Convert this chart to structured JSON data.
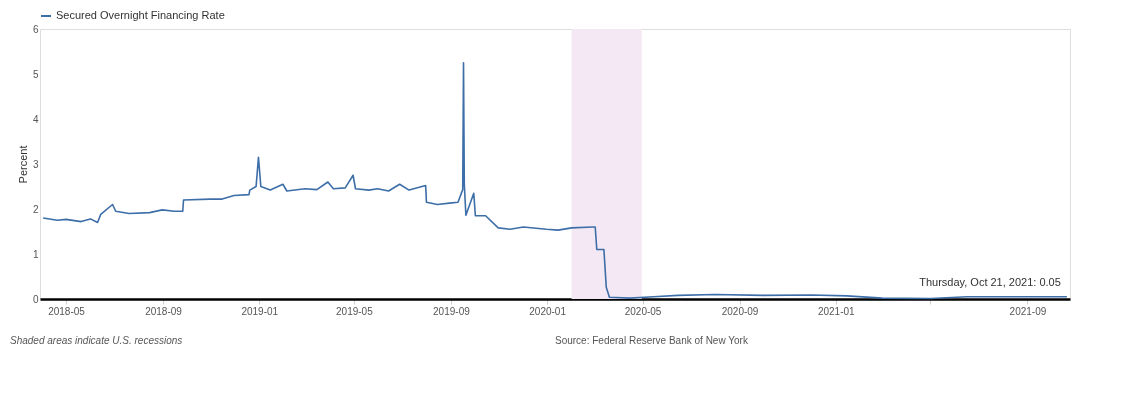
{
  "chart_data": {
    "type": "line",
    "ylabel": "Percent",
    "legend": "top left",
    "grid": false,
    "xlim": [
      "2018-03-29",
      "2021-10-25"
    ],
    "ylim": [
      0,
      6
    ],
    "yticks": [
      0,
      1,
      2,
      3,
      4,
      5,
      6
    ],
    "xticks": [
      "2018-05",
      "2018-09",
      "2019-01",
      "2019-05",
      "2019-09",
      "2020-01",
      "2020-05",
      "2020-09",
      "2021-01",
      {
        "value": "2021-05",
        "label": null
      },
      "2021-09"
    ],
    "bands": [
      {
        "axis": "x",
        "from": "2020-02-01",
        "to": "2020-04-30",
        "color": "#f3e8f3"
      }
    ],
    "annotations": [
      "Shaded areas indicate U.S. recessions",
      "Source: Federal Reserve Bank of New York",
      {
        "text": "Thursday, Oct 21, 2021: 0.05",
        "x": "2021-10-21",
        "y": 0.05
      }
    ],
    "series": [
      {
        "name": "Secured Overnight Financing Rate",
        "color": "#3d6ea8",
        "x": [
          "2018-04-02",
          "2018-04-20",
          "2018-05-01",
          "2018-05-20",
          "2018-06-01",
          "2018-06-10",
          "2018-06-14",
          "2018-06-29",
          "2018-07-03",
          "2018-07-20",
          "2018-08-15",
          "2018-08-31",
          "2018-09-15",
          "2018-09-26",
          "2018-09-27",
          "2018-10-31",
          "2018-11-15",
          "2018-11-30",
          "2018-12-19",
          "2018-12-20",
          "2018-12-28",
          "2018-12-31",
          "2019-01-03",
          "2019-01-15",
          "2019-01-31",
          "2019-02-05",
          "2019-02-28",
          "2019-03-15",
          "2019-03-29",
          "2019-04-05",
          "2019-04-20",
          "2019-04-30",
          "2019-05-03",
          "2019-05-20",
          "2019-05-31",
          "2019-06-14",
          "2019-06-28",
          "2019-07-10",
          "2019-07-31",
          "2019-08-01",
          "2019-08-15",
          "2019-08-30",
          "2019-09-10",
          "2019-09-16",
          "2019-09-17",
          "2019-09-18",
          "2019-09-20",
          "2019-09-30",
          "2019-10-02",
          "2019-10-15",
          "2019-10-31",
          "2019-11-15",
          "2019-12-02",
          "2019-12-31",
          "2020-01-15",
          "2020-02-01",
          "2020-02-28",
          "2020-03-02",
          "2020-03-04",
          "2020-03-13",
          "2020-03-16",
          "2020-03-20",
          "2020-04-15",
          "2020-05-15",
          "2020-06-15",
          "2020-08-01",
          "2020-10-01",
          "2020-12-01",
          "2021-01-15",
          "2021-03-01",
          "2021-05-01",
          "2021-06-17",
          "2021-08-01",
          "2021-10-21"
        ],
        "values": [
          1.8,
          1.75,
          1.77,
          1.72,
          1.78,
          1.7,
          1.88,
          2.1,
          1.95,
          1.9,
          1.92,
          1.98,
          1.95,
          1.95,
          2.2,
          2.22,
          2.22,
          2.3,
          2.32,
          2.42,
          2.5,
          3.15,
          2.5,
          2.42,
          2.55,
          2.4,
          2.45,
          2.43,
          2.6,
          2.45,
          2.47,
          2.75,
          2.45,
          2.42,
          2.45,
          2.4,
          2.55,
          2.42,
          2.52,
          2.15,
          2.1,
          2.13,
          2.15,
          2.43,
          5.25,
          2.55,
          1.86,
          2.35,
          1.85,
          1.85,
          1.58,
          1.55,
          1.6,
          1.55,
          1.53,
          1.58,
          1.6,
          1.6,
          1.1,
          1.1,
          0.26,
          0.04,
          0.02,
          0.05,
          0.08,
          0.1,
          0.08,
          0.09,
          0.07,
          0.02,
          0.01,
          0.05,
          0.05,
          0.05
        ]
      }
    ]
  }
}
